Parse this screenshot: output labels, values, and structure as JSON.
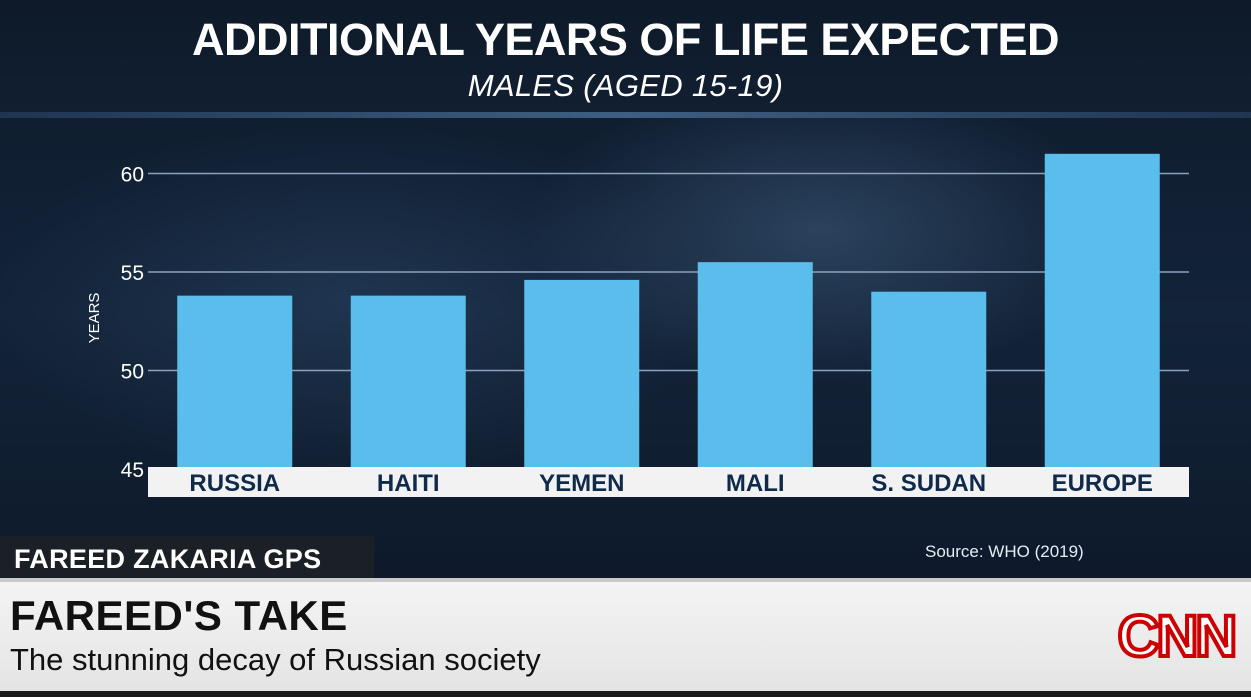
{
  "title": "ADDITIONAL YEARS OF LIFE EXPECTED",
  "subtitle": "MALES (AGED 15-19)",
  "source": "Source: WHO (2019)",
  "show_name": "FAREED ZAKARIA GPS",
  "headline": "FAREED'S TAKE",
  "subheadline": "The stunning decay of Russian society",
  "network_logo": "CNN",
  "colors": {
    "bar": "#5bbdeb",
    "logo_red": "#cc0000",
    "background": "#0f1c2e"
  },
  "chart_data": {
    "type": "bar",
    "title": "ADDITIONAL YEARS OF LIFE EXPECTED",
    "subtitle": "MALES (AGED 15-19)",
    "xlabel": "",
    "ylabel": "YEARS",
    "categories": [
      "RUSSIA",
      "HAITI",
      "YEMEN",
      "MALI",
      "S. SUDAN",
      "EUROPE"
    ],
    "values": [
      53.8,
      53.8,
      54.6,
      55.5,
      54.0,
      61.0
    ],
    "ylim": [
      45,
      62
    ],
    "yticks": [
      45,
      50,
      55,
      60
    ],
    "grid": true,
    "legend": "none"
  }
}
